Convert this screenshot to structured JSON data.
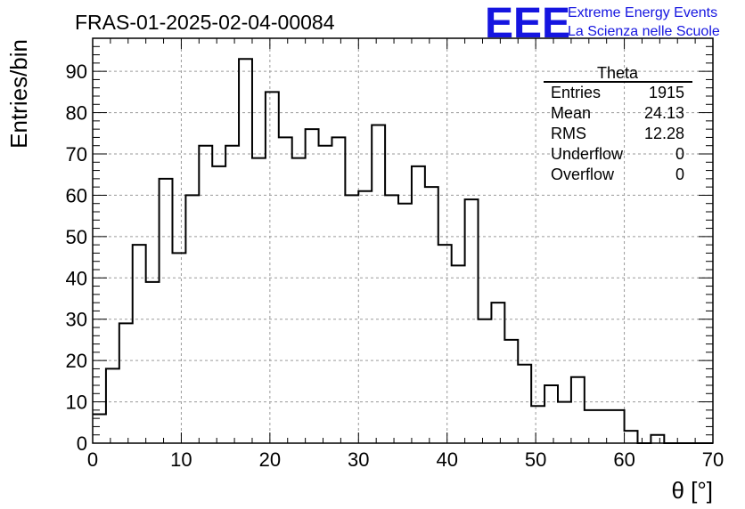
{
  "chart_data": {
    "type": "bar",
    "title": "FRAS-01-2025-02-04-00084",
    "xlabel": "θ [°]",
    "ylabel": "Entries/bin",
    "xlim": [
      0,
      70
    ],
    "ylim": [
      0,
      98
    ],
    "xticks": [
      0,
      10,
      20,
      30,
      40,
      50,
      60,
      70
    ],
    "yticks": [
      0,
      10,
      20,
      30,
      40,
      50,
      60,
      70,
      80,
      90
    ],
    "grid": true,
    "bin_width": 1.5,
    "bin_start": 0,
    "values": [
      7,
      18,
      29,
      48,
      39,
      64,
      46,
      60,
      72,
      67,
      72,
      93,
      69,
      85,
      74,
      69,
      76,
      72,
      74,
      60,
      61,
      77,
      60,
      58,
      67,
      62,
      48,
      43,
      59,
      30,
      34,
      25,
      19,
      9,
      14,
      10,
      16,
      8,
      8,
      8,
      3,
      0,
      2,
      0,
      0,
      0,
      0
    ]
  },
  "stats_box": {
    "title": "Theta",
    "rows": [
      {
        "label": "Entries",
        "value": "1915"
      },
      {
        "label": "Mean",
        "value": "24.13"
      },
      {
        "label": "RMS",
        "value": "12.28"
      },
      {
        "label": "Underflow",
        "value": "0"
      },
      {
        "label": "Overflow",
        "value": "0"
      }
    ]
  },
  "logo": {
    "mark": "EEE",
    "line1": "Extreme Energy Events",
    "line2": "La Scienza nelle Scuole"
  },
  "colors": {
    "logo": "#1515e0",
    "histogram": "#000000",
    "grid": "#9a9a9a"
  }
}
